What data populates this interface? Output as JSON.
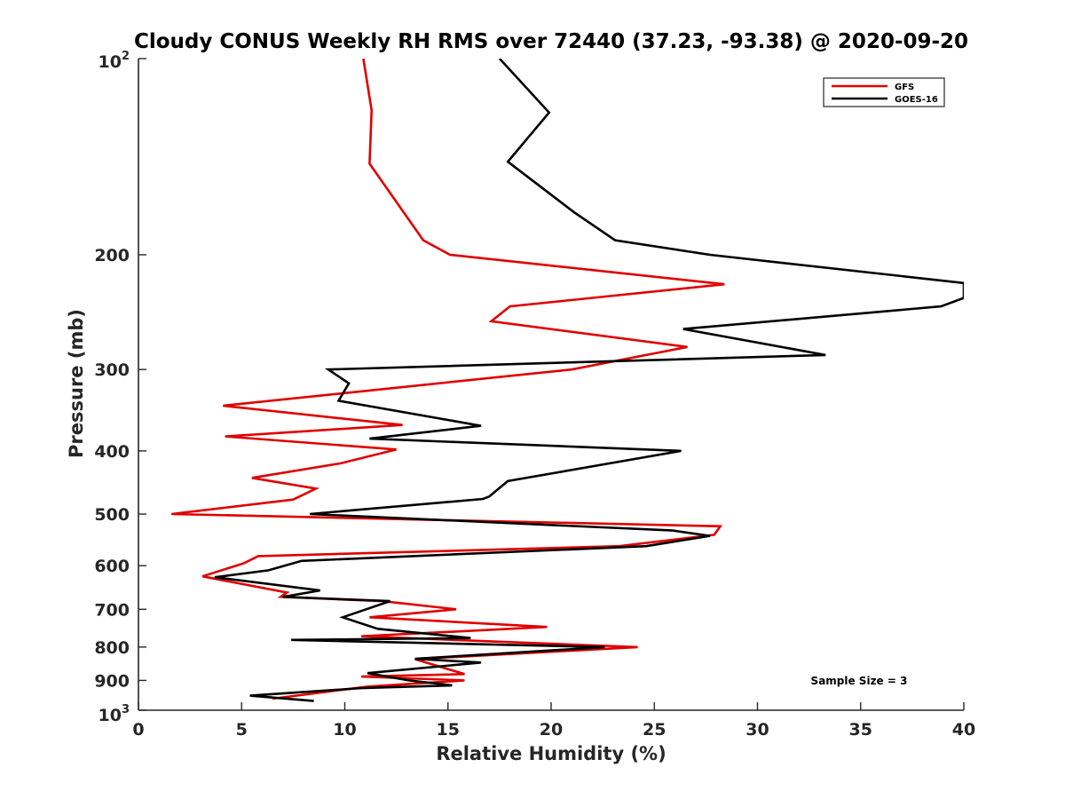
{
  "chart_data": {
    "type": "line",
    "title": "Cloudy CONUS Weekly RH RMS over 72440 (37.23, -93.38) @ 2020-09-20",
    "xlabel": "Relative Humidity (%)",
    "ylabel": "Pressure (mb)",
    "xlim": [
      0,
      40
    ],
    "ylim": [
      100,
      1000
    ],
    "yscale": "log",
    "y_reversed": true,
    "grid": false,
    "legend_position": "top-right",
    "x_ticks": [
      "0",
      "5",
      "10",
      "15",
      "20",
      "25",
      "30",
      "35",
      "40"
    ],
    "x_tick_values": [
      0,
      5,
      10,
      15,
      20,
      25,
      30,
      35,
      40
    ],
    "y_ticks": [
      "200",
      "300",
      "400",
      "500",
      "600",
      "700",
      "800",
      "900"
    ],
    "y_tick_values": [
      200,
      300,
      400,
      500,
      600,
      700,
      800,
      900
    ],
    "y_top_label": {
      "base": "10",
      "exp": "2"
    },
    "y_bottom_label": {
      "base": "10",
      "exp": "3"
    },
    "annotation": "Sample Size = 3",
    "series": [
      {
        "name": "GFS",
        "color": "#e00000",
        "x": [
          10.9,
          11.3,
          11.2,
          13.8,
          15.1,
          28.4,
          18.0,
          17.1,
          26.6,
          21.0,
          13.3,
          4.1,
          12.8,
          4.2,
          12.5,
          9.8,
          5.5,
          8.6,
          7.5,
          1.6,
          28.2,
          27.9,
          23.3,
          5.8,
          5.1,
          3.1,
          7.2,
          6.9,
          11.8,
          15.4,
          11.2,
          19.8,
          10.8,
          24.2,
          13.4,
          15.8,
          10.8,
          15.8,
          11.1,
          6.5
        ],
        "y": [
          100,
          120,
          145,
          190,
          200,
          222,
          240,
          253,
          277,
          300,
          318,
          341,
          365,
          380,
          398,
          418,
          440,
          457,
          475,
          500,
          522,
          538,
          560,
          580,
          595,
          623,
          660,
          670,
          680,
          700,
          720,
          745,
          770,
          800,
          835,
          880,
          888,
          900,
          920,
          960
        ]
      },
      {
        "name": "GOES-16",
        "color": "#000000",
        "x": [
          17.5,
          19.9,
          17.9,
          21.1,
          23.1,
          27.7,
          40.0,
          40.0,
          38.9,
          26.4,
          33.3,
          9.2,
          10.2,
          9.7,
          16.6,
          11.2,
          26.3,
          17.9,
          17.0,
          16.7,
          8.3,
          25.9,
          27.7,
          24.6,
          7.9,
          6.3,
          3.7,
          8.8,
          7.0,
          12.2,
          9.9,
          11.6,
          16.1,
          7.4,
          22.6,
          13.4,
          16.6,
          11.1,
          13.1,
          15.2,
          10.8,
          5.4,
          8.5
        ],
        "y": [
          100,
          121,
          144,
          172,
          190,
          200,
          221,
          233,
          240,
          260,
          285,
          300,
          315,
          335,
          366,
          383,
          400,
          445,
          470,
          474,
          500,
          530,
          540,
          560,
          590,
          610,
          625,
          655,
          670,
          680,
          720,
          750,
          775,
          780,
          800,
          834,
          845,
          877,
          900,
          916,
          925,
          950,
          968
        ]
      }
    ]
  }
}
